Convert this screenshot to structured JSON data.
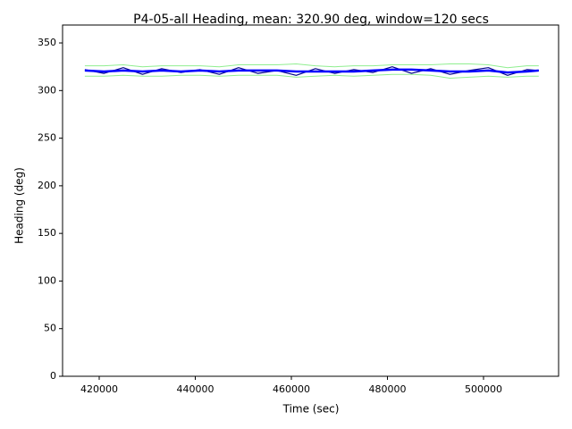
{
  "chart_data": {
    "type": "line",
    "title": "P4-05-all Heading, mean: 320.90 deg, window=120 secs",
    "x_label": "Time (sec)",
    "y_label": "Heading (deg)",
    "x": [
      417000,
      421000,
      425000,
      429000,
      433000,
      437000,
      441000,
      445000,
      449000,
      453000,
      457000,
      461000,
      465000,
      469000,
      473000,
      477000,
      481000,
      485000,
      489000,
      493000,
      497000,
      501000,
      505000,
      509000,
      511500
    ],
    "series": [
      {
        "color": "#00008b",
        "values": [
          322,
          318,
          324,
          317,
          323,
          319,
          322,
          317,
          324,
          318,
          321,
          316,
          323,
          318,
          322,
          319,
          325,
          318,
          323,
          317,
          321,
          324,
          316,
          322,
          321
        ]
      },
      {
        "color": "#0000ff",
        "values": [
          321,
          320,
          321,
          320,
          321,
          320,
          321,
          320,
          321,
          321,
          321,
          320,
          320,
          320,
          320,
          321,
          322,
          322,
          321,
          320,
          320,
          321,
          319,
          320,
          321
        ]
      },
      {
        "color": "#90ee90",
        "values": [
          326,
          326,
          327,
          325,
          326,
          326,
          326,
          325,
          327,
          327,
          327,
          328,
          326,
          325,
          326,
          326,
          327,
          327,
          327,
          328,
          328,
          327,
          324,
          326,
          326
        ]
      },
      {
        "color": "#90ee90",
        "values": [
          315,
          315,
          316,
          315,
          315,
          316,
          316,
          315,
          316,
          316,
          316,
          314,
          315,
          316,
          315,
          316,
          317,
          317,
          316,
          313,
          314,
          315,
          314,
          315,
          315
        ]
      }
    ],
    "xlim": [
      412370,
      515630
    ],
    "ylim": [
      0,
      368.8
    ],
    "xticks": [
      420000,
      440000,
      460000,
      480000,
      500000
    ],
    "yticks": [
      0,
      50,
      100,
      150,
      200,
      250,
      300,
      350
    ]
  }
}
